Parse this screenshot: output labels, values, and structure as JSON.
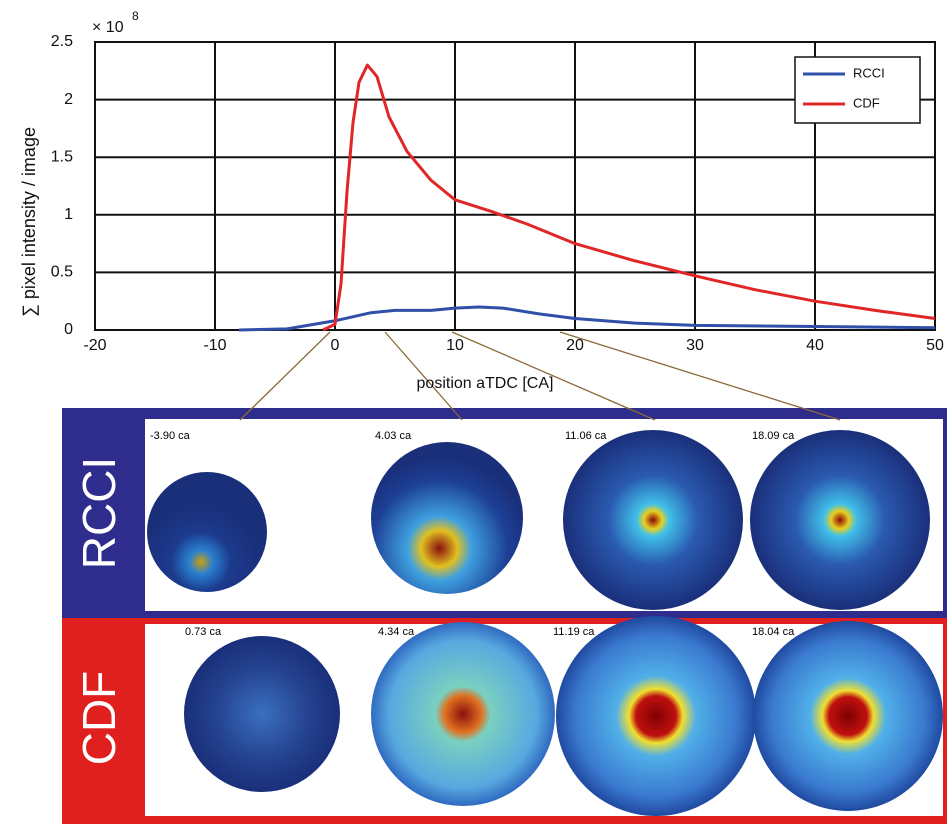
{
  "chart_data": {
    "type": "line",
    "multiplier": {
      "base": "× 10",
      "exponent": "8"
    },
    "xlabel": "position aTDC [CA]",
    "ylabel": "∑ pixel intensity / image",
    "xlim": [
      -20,
      50
    ],
    "xticks": [
      -20,
      -10,
      0,
      10,
      20,
      30,
      40,
      50
    ],
    "ylim": [
      0,
      2.5
    ],
    "yticks": [
      0,
      0.5,
      1,
      1.5,
      2,
      2.5
    ],
    "grid": true,
    "legend": "upper right",
    "series": [
      {
        "name": "RCCI",
        "color": "#2f4fa8",
        "x": [
          -8,
          -4,
          0,
          3,
          5,
          8,
          10,
          12,
          14,
          17,
          20,
          25,
          30,
          40,
          50
        ],
        "values": [
          0,
          0.01,
          0.08,
          0.15,
          0.17,
          0.17,
          0.19,
          0.2,
          0.19,
          0.14,
          0.1,
          0.06,
          0.04,
          0.03,
          0.02
        ]
      },
      {
        "name": "CDF",
        "color": "#e02626",
        "x": [
          -1,
          0,
          0.5,
          1,
          1.5,
          2,
          2.7,
          3.5,
          4.5,
          6,
          8,
          10,
          13,
          16,
          20,
          25,
          30,
          35,
          40,
          45,
          50
        ],
        "values": [
          0,
          0.05,
          0.4,
          1.2,
          1.8,
          2.15,
          2.3,
          2.2,
          1.85,
          1.55,
          1.3,
          1.13,
          1.03,
          0.92,
          0.75,
          0.6,
          0.47,
          0.35,
          0.25,
          0.17,
          0.1
        ]
      }
    ]
  },
  "panels": [
    {
      "label": "RCCI",
      "frames": [
        "-3.90 ca",
        "4.03 ca",
        "11.06 ca",
        "18.09 ca"
      ]
    },
    {
      "label": "CDF",
      "frames": [
        "0.73 ca",
        "4.34 ca",
        "11.19 ca",
        "18.04 ca"
      ]
    }
  ]
}
